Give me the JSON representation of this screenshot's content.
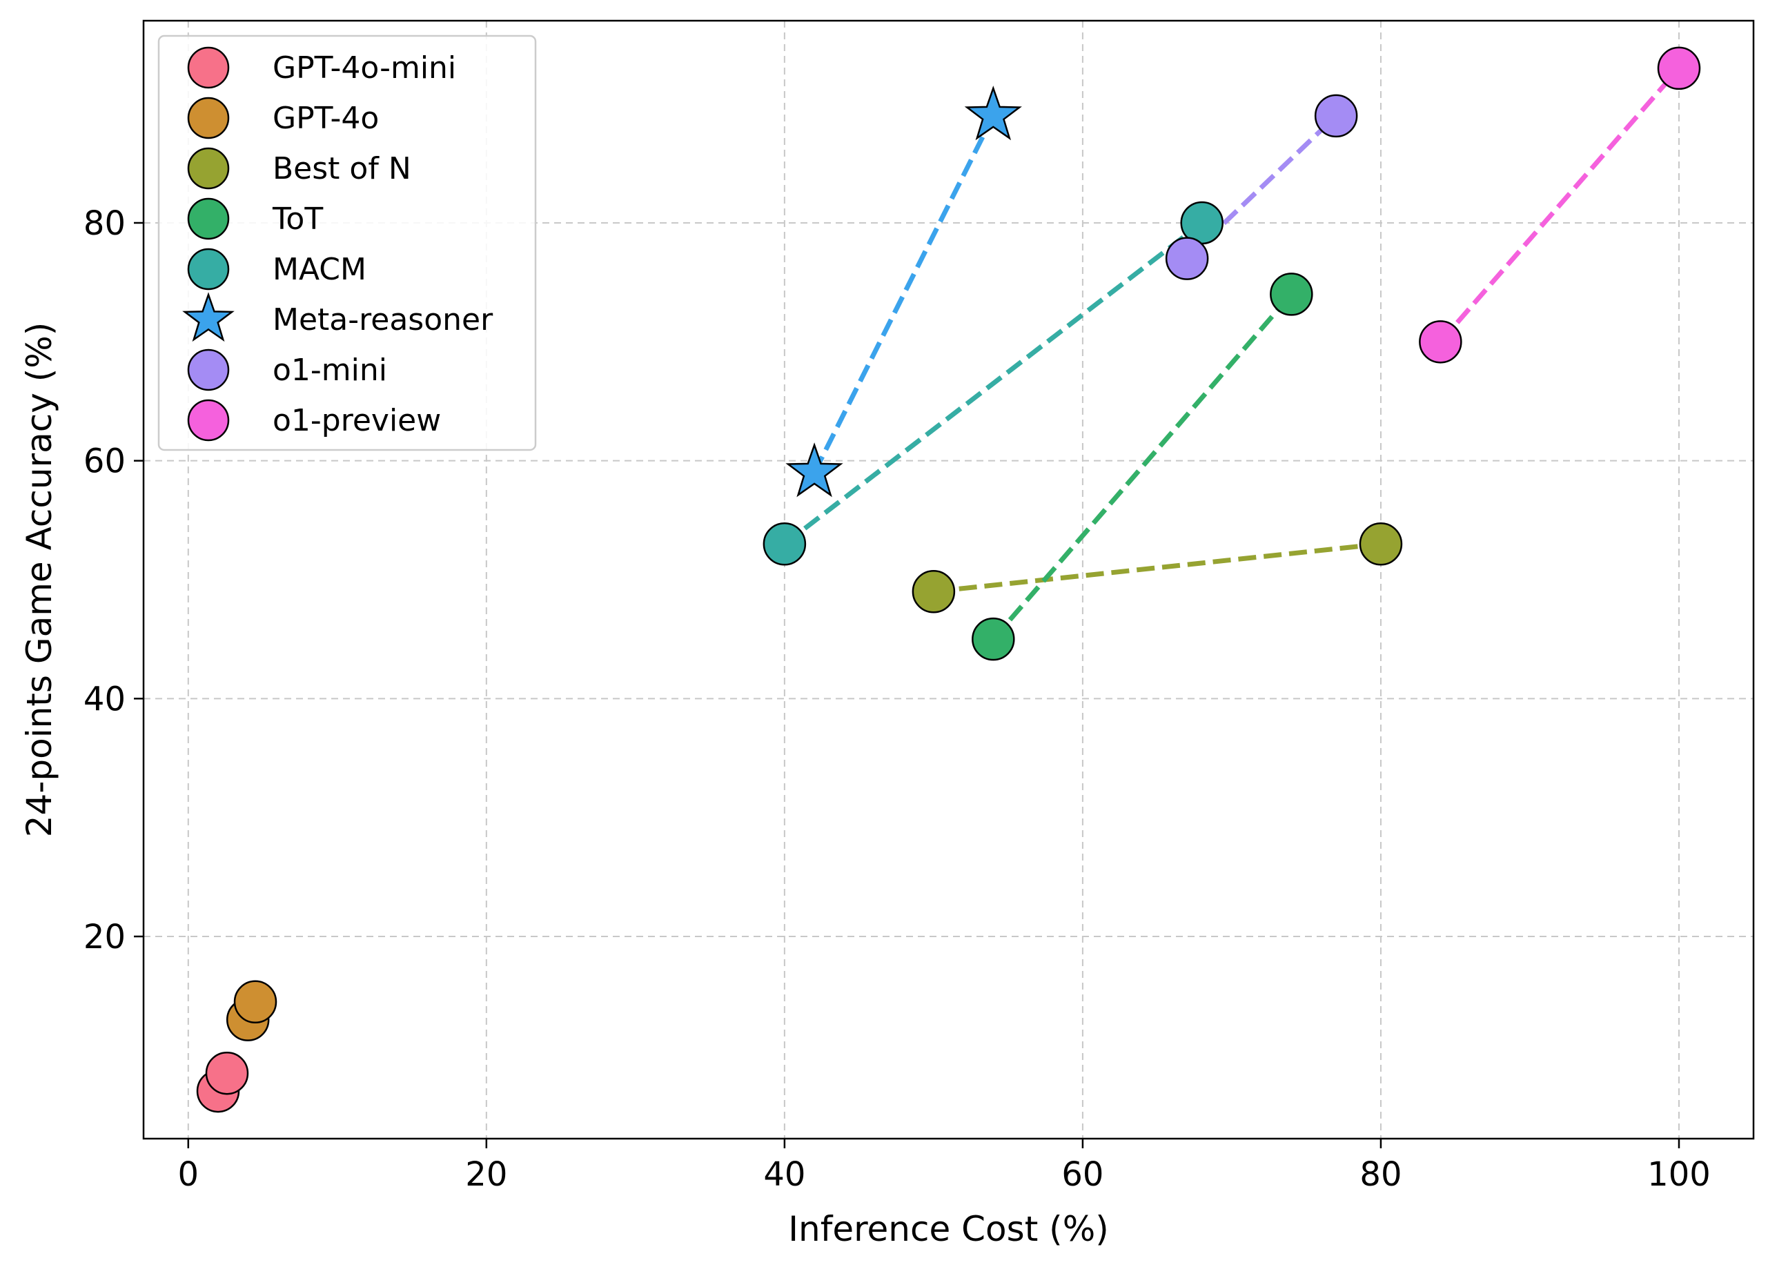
{
  "chart_data": {
    "type": "scatter",
    "title": "",
    "xlabel": "Inference Cost (%)",
    "ylabel": "24-points Game Accuracy (%)",
    "xlim": [
      -3,
      105
    ],
    "ylim": [
      3,
      97
    ],
    "x_ticks": [
      0,
      20,
      40,
      60,
      80,
      100
    ],
    "y_ticks": [
      20,
      40,
      60,
      80
    ],
    "grid": true,
    "legend_position": "top-left",
    "series": [
      {
        "name": "GPT-4o-mini",
        "marker": "circle",
        "color": "#f77189",
        "connected": false,
        "points": [
          {
            "x": 2.0,
            "y": 7.0
          },
          {
            "x": 2.6,
            "y": 8.5
          }
        ]
      },
      {
        "name": "GPT-4o",
        "marker": "circle",
        "color": "#ce8f31",
        "connected": false,
        "points": [
          {
            "x": 4.0,
            "y": 13.0
          },
          {
            "x": 4.5,
            "y": 14.5
          }
        ]
      },
      {
        "name": "Best of N",
        "marker": "circle",
        "color": "#96a331",
        "connected": true,
        "points": [
          {
            "x": 50,
            "y": 49
          },
          {
            "x": 80,
            "y": 53
          }
        ]
      },
      {
        "name": "ToT",
        "marker": "circle",
        "color": "#33b068",
        "connected": true,
        "points": [
          {
            "x": 54,
            "y": 45
          },
          {
            "x": 74,
            "y": 74
          }
        ]
      },
      {
        "name": "MACM",
        "marker": "circle",
        "color": "#36ada4",
        "connected": true,
        "points": [
          {
            "x": 40,
            "y": 53
          },
          {
            "x": 68,
            "y": 80
          }
        ]
      },
      {
        "name": "Meta-reasoner",
        "marker": "star",
        "color": "#3ba3ec",
        "connected": true,
        "points": [
          {
            "x": 42,
            "y": 59
          },
          {
            "x": 54,
            "y": 89
          }
        ]
      },
      {
        "name": "o1-mini",
        "marker": "circle",
        "color": "#a48cf4",
        "connected": true,
        "points": [
          {
            "x": 67,
            "y": 77
          },
          {
            "x": 77,
            "y": 89
          }
        ]
      },
      {
        "name": "o1-preview",
        "marker": "circle",
        "color": "#f561dd",
        "connected": true,
        "points": [
          {
            "x": 84,
            "y": 70
          },
          {
            "x": 100,
            "y": 93
          }
        ]
      }
    ]
  }
}
